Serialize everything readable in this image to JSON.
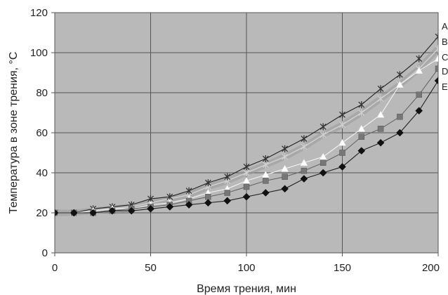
{
  "chart_data": {
    "type": "line",
    "title": "",
    "xlabel": "Время трения, мин",
    "ylabel": "Температура в зоне трения, °С",
    "xlim": [
      0,
      200
    ],
    "ylim": [
      0,
      120
    ],
    "xticks": [
      0,
      50,
      100,
      150,
      200
    ],
    "yticks": [
      0,
      20,
      40,
      60,
      80,
      100,
      120
    ],
    "grid": true,
    "legend": "right",
    "x": [
      0,
      10,
      20,
      30,
      40,
      50,
      60,
      70,
      80,
      90,
      100,
      110,
      120,
      130,
      140,
      150,
      160,
      170,
      180,
      190,
      200
    ],
    "series": [
      {
        "name": "A",
        "marker": "star",
        "color": "#333333",
        "values": [
          20,
          20,
          22,
          23,
          24,
          27,
          28,
          31,
          35,
          38,
          43,
          47,
          52,
          57,
          63,
          69,
          74,
          82,
          89,
          97,
          108
        ]
      },
      {
        "name": "B",
        "marker": "star-light",
        "color": "#bdbdbd",
        "values": [
          20,
          20,
          21,
          22,
          23,
          25,
          27,
          29,
          33,
          36,
          40,
          44,
          48,
          53,
          59,
          64,
          70,
          77,
          84,
          92,
          102
        ]
      },
      {
        "name": "C",
        "marker": "triangle",
        "color": "#ffffff",
        "values": [
          20,
          20,
          21,
          22,
          22,
          24,
          25,
          27,
          30,
          32,
          36,
          39,
          42,
          45,
          48,
          55,
          62,
          69,
          84,
          91,
          97
        ]
      },
      {
        "name": "D",
        "marker": "square",
        "color": "#777777",
        "values": [
          20,
          20,
          20,
          21,
          22,
          23,
          24,
          26,
          28,
          30,
          33,
          36,
          38,
          41,
          45,
          50,
          58,
          62,
          68,
          79,
          92
        ]
      },
      {
        "name": "E",
        "marker": "diamond",
        "color": "#111111",
        "values": [
          20,
          20,
          20,
          21,
          21,
          22,
          23,
          24,
          25,
          26,
          28,
          30,
          32,
          37,
          40,
          43,
          51,
          55,
          60,
          71,
          86
        ]
      }
    ]
  }
}
